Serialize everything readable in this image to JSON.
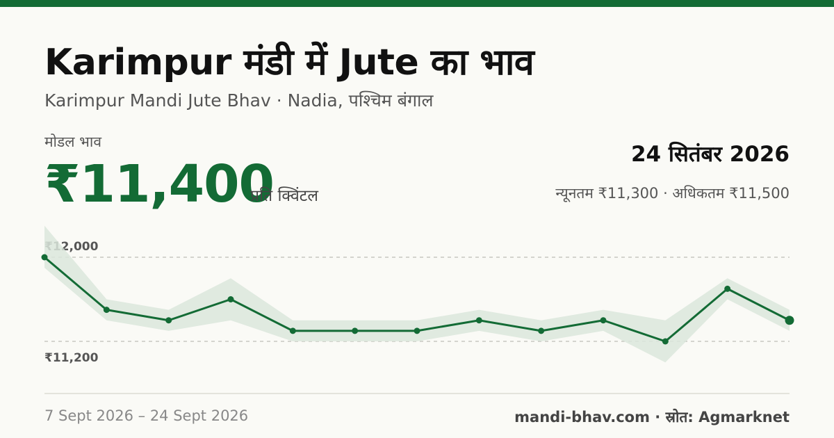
{
  "header": {
    "title": "Karimpur मंडी में Jute का भाव",
    "subtitle": "Karimpur Mandi Jute Bhav · Nadia, पश्चिम बंगाल"
  },
  "summary": {
    "modal_label": "मोडल भाव",
    "price": "₹11,400",
    "unit": "प्रति क्विंटल",
    "date": "24 सितंबर 2026",
    "range": "न्यूनतम ₹11,300 · अधिकतम ₹11,500"
  },
  "footer": {
    "period": "7 Sept 2026 – 24 Sept 2026",
    "source": "mandi-bhav.com · स्रोत: Agmarknet"
  },
  "colors": {
    "accent": "#136b35",
    "band": "#dbe6dc",
    "grid": "#bdbdb6"
  },
  "chart_data": {
    "type": "line",
    "ylim": [
      11200,
      12000
    ],
    "yticks": [
      {
        "value": 12000,
        "label": "₹12,000"
      },
      {
        "value": 11200,
        "label": "₹11,200"
      }
    ],
    "series": [
      {
        "modal": [
          12000,
          11500,
          11400,
          11600,
          11300,
          11300,
          11300,
          11400,
          11300,
          11400,
          11200,
          11700,
          11400
        ],
        "min": [
          11900,
          11400,
          11300,
          11400,
          11200,
          11200,
          11200,
          11300,
          11200,
          11300,
          11000,
          11600,
          11300
        ],
        "max": [
          12300,
          11600,
          11500,
          11800,
          11400,
          11400,
          11400,
          11500,
          11400,
          11500,
          11400,
          11800,
          11500
        ]
      }
    ]
  }
}
